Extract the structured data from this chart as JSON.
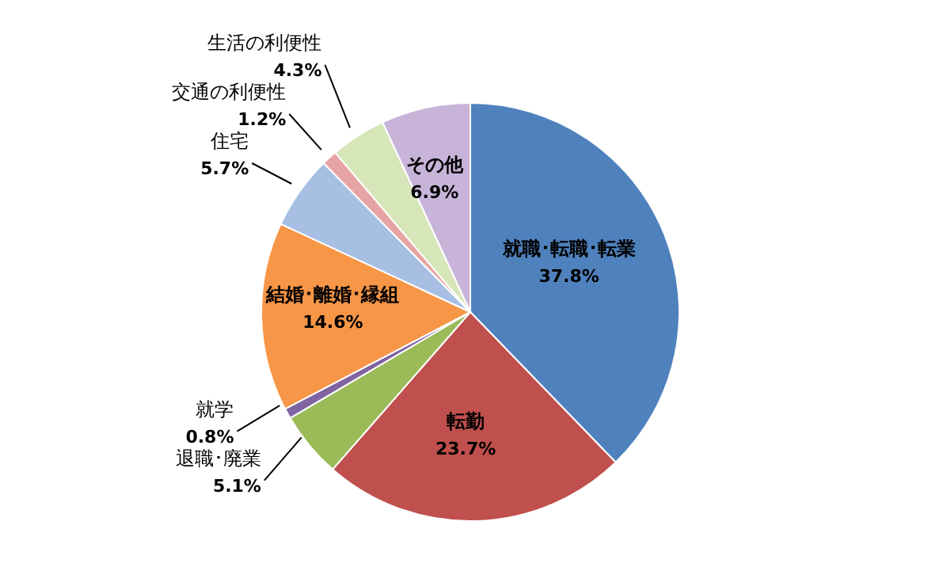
{
  "chart_data": {
    "type": "pie",
    "categories": [
      "就職･転職･転業",
      "転勤",
      "退職･廃業",
      "就学",
      "結婚･離婚･縁組",
      "住宅",
      "交通の利便性",
      "生活の利便性",
      "その他"
    ],
    "values": [
      37.8,
      23.7,
      5.1,
      0.8,
      14.6,
      5.7,
      1.2,
      4.3,
      6.9
    ],
    "value_labels": [
      "37.8%",
      "23.7%",
      "5.1%",
      "0.8%",
      "14.6%",
      "5.7%",
      "1.2%",
      "4.3%",
      "6.9%"
    ],
    "colors": [
      "#4f81bd",
      "#c0504d",
      "#9bbb59",
      "#8064a2",
      "#f79646",
      "#a7bfe3",
      "#e6a3a3",
      "#d6e6b8",
      "#c8b4d8"
    ],
    "legend": false
  }
}
